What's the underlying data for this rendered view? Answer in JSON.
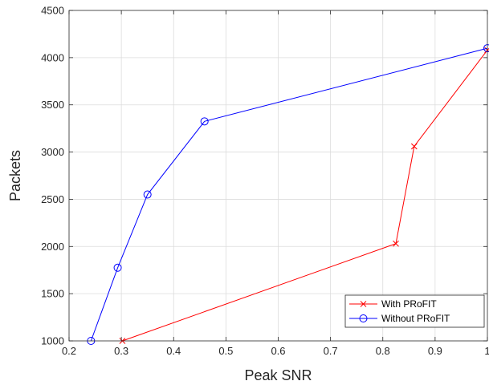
{
  "chart_data": {
    "type": "line",
    "title": "",
    "xlabel": "Peak SNR",
    "ylabel": "Packets",
    "xlim": [
      0.2,
      1.0
    ],
    "ylim": [
      1000,
      4500
    ],
    "xticks": [
      "0.2",
      "0.3",
      "0.4",
      "0.5",
      "0.6",
      "0.7",
      "0.8",
      "0.9",
      "1"
    ],
    "yticks": [
      "1000",
      "1500",
      "2000",
      "2500",
      "3000",
      "3500",
      "4000",
      "4500"
    ],
    "grid": true,
    "legend_position": "bottom-right",
    "series": [
      {
        "name": "With PRoFIT",
        "color": "#ff0000",
        "marker": "x",
        "x": [
          0.302,
          0.825,
          0.86,
          1.0
        ],
        "y": [
          1000,
          2030,
          3060,
          4080
        ]
      },
      {
        "name": "Without PRoFIT",
        "color": "#0000ff",
        "marker": "circle",
        "x": [
          0.242,
          0.293,
          0.35,
          0.459,
          1.0
        ],
        "y": [
          1000,
          1775,
          2550,
          3325,
          4100
        ]
      }
    ]
  }
}
